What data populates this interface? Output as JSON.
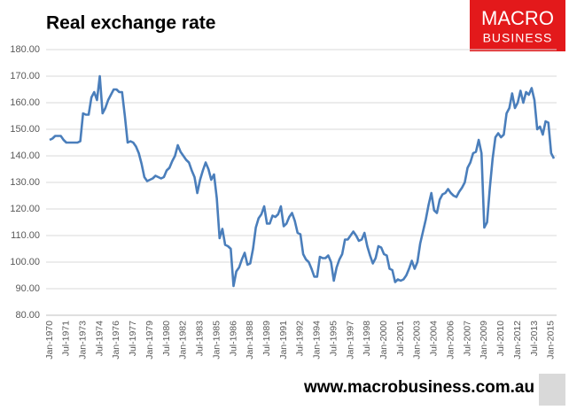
{
  "chart_data": {
    "type": "line",
    "title": "Real exchange rate",
    "logo": [
      "MACRO",
      "BUSINESS"
    ],
    "footer": "www.macrobusiness.com.au",
    "color": "#4a7ebb",
    "grid": true,
    "ylim": [
      80,
      180
    ],
    "yticks": [
      {
        "value": 80,
        "label": "80.00"
      },
      {
        "value": 90,
        "label": "90.00"
      },
      {
        "value": 100,
        "label": "100.00"
      },
      {
        "value": 110,
        "label": "110.00"
      },
      {
        "value": 120,
        "label": "120.00"
      },
      {
        "value": 130,
        "label": "130.00"
      },
      {
        "value": 140,
        "label": "140.00"
      },
      {
        "value": 150,
        "label": "150.00"
      },
      {
        "value": 160,
        "label": "160.00"
      },
      {
        "value": 170,
        "label": "170.00"
      },
      {
        "value": 180,
        "label": "180.00"
      }
    ],
    "categories": [
      "Jan-1970",
      null,
      null,
      null,
      null,
      null,
      "Jul-1971",
      null,
      null,
      null,
      null,
      null,
      "Jan-1973",
      null,
      null,
      null,
      null,
      null,
      "Jul-1974",
      null,
      null,
      null,
      null,
      null,
      "Jan-1976",
      null,
      null,
      null,
      null,
      null,
      "Jul-1977",
      null,
      null,
      null,
      null,
      null,
      "Jan-1979",
      null,
      null,
      null,
      null,
      null,
      "Jul-1980",
      null,
      null,
      null,
      null,
      null,
      "Jan-1982",
      null,
      null,
      null,
      null,
      null,
      "Jul-1983",
      null,
      null,
      null,
      null,
      null,
      "Jan-1985",
      null,
      null,
      null,
      null,
      null,
      "Jul-1986",
      null,
      null,
      null,
      null,
      null,
      "Jan-1988",
      null,
      null,
      null,
      null,
      null,
      "Jul-1989",
      null,
      null,
      null,
      null,
      null,
      "Jan-1991",
      null,
      null,
      null,
      null,
      null,
      "Jul-1992",
      null,
      null,
      null,
      null,
      null,
      "Jan-1994",
      null,
      null,
      null,
      null,
      null,
      "Jul-1995",
      null,
      null,
      null,
      null,
      null,
      "Jan-1997",
      null,
      null,
      null,
      null,
      null,
      "Jul-1998",
      null,
      null,
      null,
      null,
      null,
      "Jan-2000",
      null,
      null,
      null,
      null,
      null,
      "Jul-2001",
      null,
      null,
      null,
      null,
      null,
      "Jan-2003",
      null,
      null,
      null,
      null,
      null,
      "Jul-2004",
      null,
      null,
      null,
      null,
      null,
      "Jan-2006",
      null,
      null,
      null,
      null,
      null,
      "Jul-2007",
      null,
      null,
      null,
      null,
      null,
      "Jan-2009",
      null,
      null,
      null,
      null,
      null,
      "Jul-2010",
      null,
      null,
      null,
      null,
      null,
      "Jan-2012",
      null,
      null,
      null,
      null,
      null,
      "Jul-2013",
      null,
      null,
      null,
      null,
      null,
      "Jan-2015",
      null
    ],
    "values": [
      146,
      146.5,
      147.5,
      147.5,
      147.5,
      146,
      145,
      145,
      145,
      145,
      145,
      145.5,
      156,
      155.5,
      155.5,
      162,
      164,
      161,
      170,
      156,
      158,
      161,
      163,
      165,
      165,
      164,
      164,
      155,
      145,
      145.5,
      145,
      143.5,
      141,
      137,
      132,
      130.5,
      131,
      131.5,
      132.5,
      132,
      131.5,
      132,
      134.5,
      135.5,
      138,
      140,
      144,
      141.5,
      140,
      138.5,
      137.5,
      134.5,
      132,
      126,
      131,
      134.5,
      137.5,
      135,
      131,
      133,
      124,
      109,
      112.5,
      106.5,
      106,
      105,
      91,
      96.5,
      98,
      101,
      103.5,
      99,
      99.5,
      105,
      113,
      116.5,
      118,
      121,
      114.5,
      114.5,
      117.5,
      117,
      118,
      121,
      113.5,
      114.5,
      117,
      118.5,
      115.5,
      111,
      110.5,
      103,
      101,
      100,
      97.5,
      94.5,
      94.5,
      102,
      101.5,
      101.5,
      102.5,
      100,
      93,
      98,
      101,
      103,
      108.5,
      108.5,
      110,
      111.5,
      110,
      108,
      108.5,
      111,
      106,
      102.5,
      99.5,
      101.5,
      106,
      105.5,
      103,
      102.5,
      97.5,
      97,
      92.5,
      93.5,
      93,
      93.5,
      95,
      97.5,
      100.5,
      97.5,
      100,
      107,
      111.5,
      116,
      121.5,
      126,
      119.5,
      118.5,
      123.5,
      125.5,
      126,
      127.5,
      126,
      125,
      124.5,
      126.5,
      128,
      130,
      135.5,
      137.5,
      141,
      141.5,
      146,
      141,
      113,
      115,
      128,
      139,
      147,
      148.5,
      147,
      148,
      156,
      158,
      163.5,
      158,
      160,
      164.5,
      160,
      164,
      163,
      165.5,
      161,
      150,
      151,
      148,
      153,
      152.5,
      141,
      139
    ]
  }
}
